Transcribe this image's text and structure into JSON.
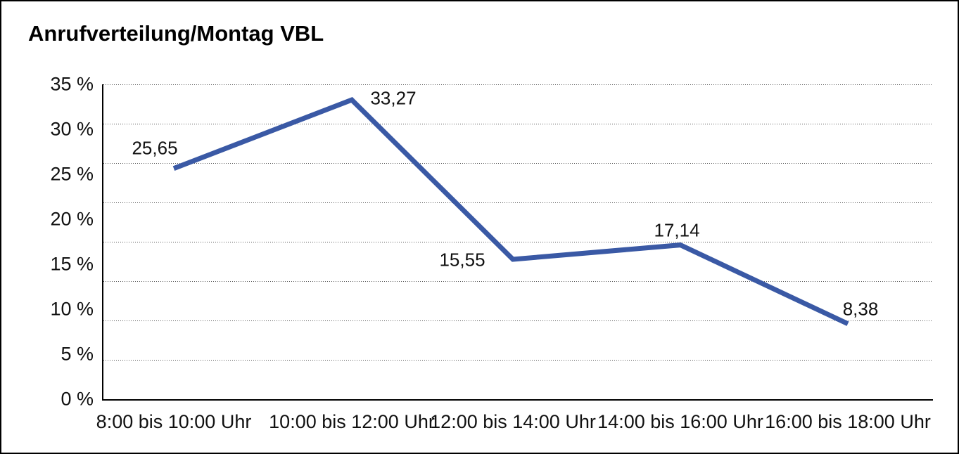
{
  "title": "Anrufverteilung/Montag VBL",
  "chart_data": {
    "type": "line",
    "title": "Anrufverteilung/Montag VBL",
    "categories": [
      "8:00 bis 10:00 Uhr",
      "10:00 bis 12:00 Uhr",
      "12:00 bis 14:00 Uhr",
      "14:00 bis 16:00 Uhr",
      "16:00 bis 18:00 Uhr"
    ],
    "values": [
      25.65,
      33.27,
      15.55,
      17.14,
      8.38
    ],
    "data_labels": [
      "25,65",
      "33,27",
      "15,55",
      "17,14",
      "8,38"
    ],
    "data_label_placements": [
      "above-left",
      "right",
      "left",
      "above",
      "above-right"
    ],
    "y_ticks": [
      {
        "value": 35,
        "label": "35 %"
      },
      {
        "value": 30,
        "label": "30 %"
      },
      {
        "value": 25,
        "label": "25 %"
      },
      {
        "value": 20,
        "label": "20 %"
      },
      {
        "value": 15,
        "label": "15 %"
      },
      {
        "value": 10,
        "label": "10 %"
      },
      {
        "value": 5,
        "label": "5 %"
      },
      {
        "value": 0,
        "label": "0 %"
      }
    ],
    "ylim": [
      0,
      35
    ],
    "xlabel": "",
    "ylabel": "",
    "grid": {
      "horizontal_intervals": 8,
      "style": "dotted",
      "color": "#555555"
    },
    "legend_position": "none",
    "colors": {
      "line": "#3A59A5",
      "axis": "#000000",
      "text": "#111111",
      "background": "#ffffff",
      "border": "#000000"
    }
  }
}
